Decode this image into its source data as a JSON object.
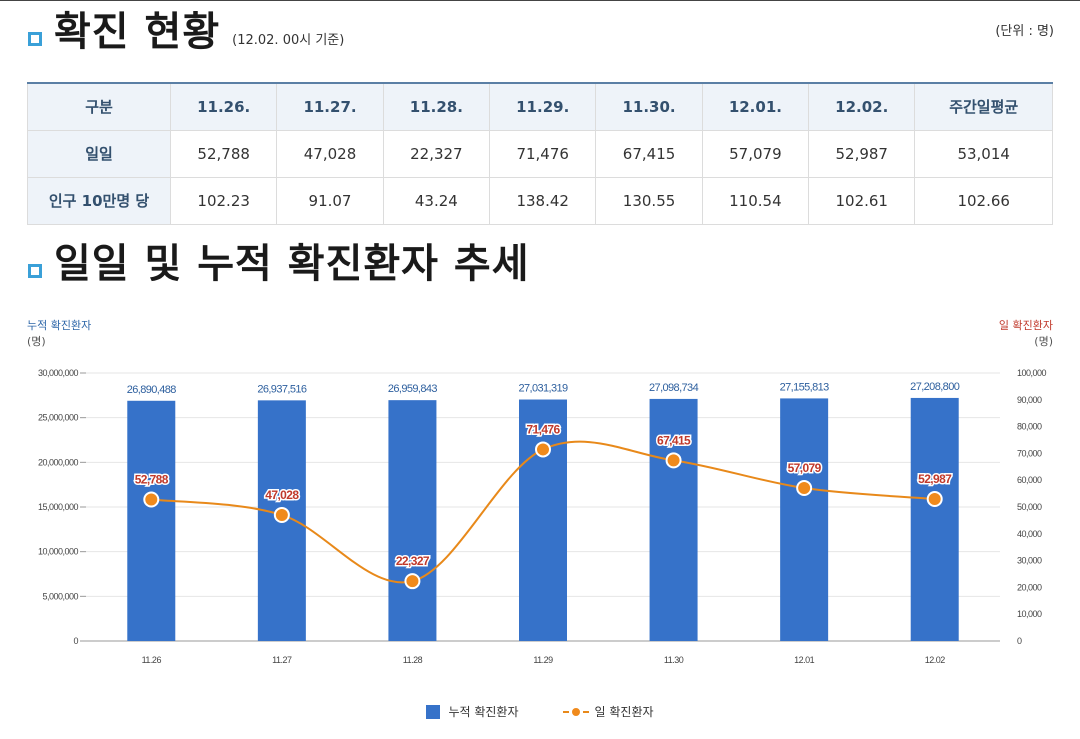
{
  "section1": {
    "title": "확진 현황",
    "note": "(12.02. 00시 기준)",
    "unit": "(단위 : 명)"
  },
  "table": {
    "headers": [
      "구분",
      "11.26.",
      "11.27.",
      "11.28.",
      "11.29.",
      "11.30.",
      "12.01.",
      "12.02.",
      "주간일평균"
    ],
    "rows": [
      {
        "label": "일일",
        "cells": [
          "52,788",
          "47,028",
          "22,327",
          "71,476",
          "67,415",
          "57,079",
          "52,987",
          "53,014"
        ]
      },
      {
        "label": "인구 10만명 당",
        "cells": [
          "102.23",
          "91.07",
          "43.24",
          "138.42",
          "130.55",
          "110.54",
          "102.61",
          "102.66"
        ]
      }
    ]
  },
  "section2": {
    "title": "일일 및 누적 확진환자 추세"
  },
  "axes": {
    "left_title": "누적 확진환자",
    "left_unit": "(명)",
    "right_title": "일 확진환자",
    "right_unit": "(명)"
  },
  "chart_data": {
    "type": "bar",
    "categories": [
      "11.26",
      "11.27",
      "11.28",
      "11.29",
      "11.30",
      "12.01",
      "12.02"
    ],
    "series": [
      {
        "name": "누적 확진환자",
        "type": "bar",
        "axis": "left",
        "color": "#3672c9",
        "values": [
          26890488,
          26937516,
          26959843,
          27031319,
          27098734,
          27155813,
          27208800
        ],
        "labels": [
          "26,890,488",
          "26,937,516",
          "26,959,843",
          "27,031,319",
          "27,098,734",
          "27,155,813",
          "27,208,800"
        ]
      },
      {
        "name": "일 확진환자",
        "type": "line",
        "axis": "right",
        "color": "#e8891a",
        "values": [
          52788,
          47028,
          22327,
          71476,
          67415,
          57079,
          52987
        ],
        "labels": [
          "52,788",
          "47,028",
          "22,327",
          "71,476",
          "67,415",
          "57,079",
          "52,987"
        ]
      }
    ],
    "y_left": {
      "range": [
        0,
        30000000
      ],
      "ticks": [
        0,
        5000000,
        10000000,
        15000000,
        20000000,
        25000000,
        30000000
      ],
      "tick_labels": [
        "0",
        "5,000,000",
        "10,000,000",
        "15,000,000",
        "20,000,000",
        "25,000,000",
        "30,000,000"
      ]
    },
    "y_right": {
      "range": [
        0,
        100000
      ],
      "ticks": [
        0,
        10000,
        20000,
        30000,
        40000,
        50000,
        60000,
        70000,
        80000,
        90000,
        100000
      ],
      "tick_labels": [
        "0",
        "10,000",
        "20,000",
        "30,000",
        "40,000",
        "50,000",
        "60,000",
        "70,000",
        "80,000",
        "90,000",
        "100,000"
      ]
    },
    "legend": [
      "누적 확진환자",
      "일 확진환자"
    ],
    "legend_position": "bottom",
    "grid": true
  }
}
